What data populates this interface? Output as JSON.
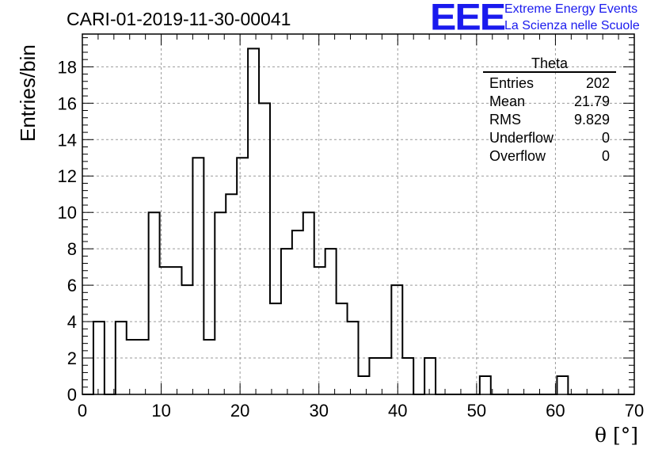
{
  "header": {
    "title": "CARI-01-2019-11-30-00041",
    "logo_mark": "EEE",
    "logo_line1": "Extreme Energy Events",
    "logo_line2": "La Scienza nelle Scuole"
  },
  "stats": {
    "title": "Theta",
    "rows": [
      {
        "label": "Entries",
        "value": "202"
      },
      {
        "label": "Mean",
        "value": "21.79"
      },
      {
        "label": "RMS",
        "value": "9.829"
      },
      {
        "label": "Underflow",
        "value": "0"
      },
      {
        "label": "Overflow",
        "value": "0"
      }
    ]
  },
  "colors": {
    "line": "#000000",
    "grid": "#9a9a9a",
    "logo": "#1a1aee"
  },
  "chart_data": {
    "type": "bar",
    "style": "step histogram",
    "title": "CARI-01-2019-11-30-00041",
    "xlabel": "θ [°]",
    "ylabel": "Entries/bin",
    "xlim": [
      0,
      70
    ],
    "ylim": [
      0,
      19.8
    ],
    "x_ticks": [
      0,
      10,
      20,
      30,
      40,
      50,
      60,
      70
    ],
    "y_ticks": [
      0,
      2,
      4,
      6,
      8,
      10,
      12,
      14,
      16,
      18
    ],
    "grid": true,
    "bin_width": 1.4,
    "values": [
      0,
      4,
      0,
      4,
      3,
      3,
      10,
      7,
      7,
      6,
      13,
      3,
      10,
      11,
      13,
      19,
      16,
      5,
      8,
      9,
      10,
      7,
      8,
      5,
      4,
      1,
      2,
      2,
      6,
      2,
      0,
      2,
      0,
      0,
      0,
      0,
      1,
      0,
      0,
      0,
      0,
      0,
      0,
      1,
      0,
      0,
      0,
      0,
      0,
      0
    ]
  }
}
